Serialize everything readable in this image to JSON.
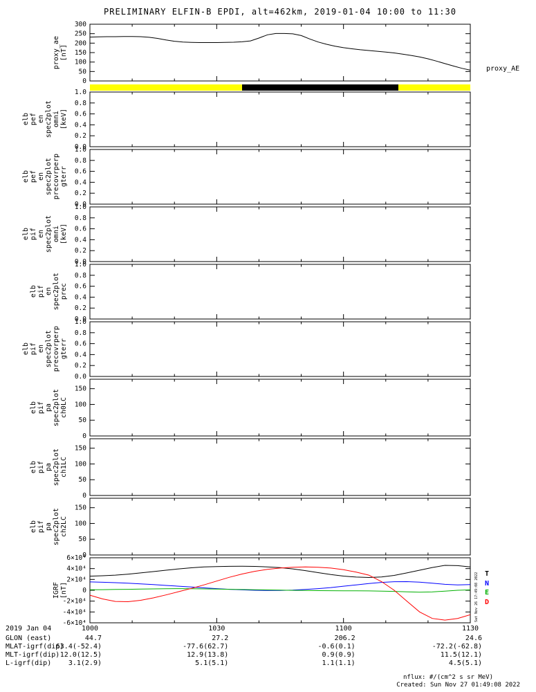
{
  "title": "PRELIMINARY ELFIN-B EPDI, alt=462km, 2019-01-04 10:00 to 11:30",
  "right_labels": {
    "proxy_ae": "proxy_AE"
  },
  "time_axis": {
    "date_label": "2019 Jan 04",
    "tick_minutes": [
      0,
      30,
      60,
      90
    ],
    "tick_labels": [
      "1000",
      "1030",
      "1100",
      "1130"
    ],
    "minor_tick_minutes": [
      10,
      20,
      40,
      50,
      70,
      80
    ]
  },
  "orbit_bar": {
    "segments": [
      {
        "color": "#ffff00",
        "t0": 0,
        "t1": 36
      },
      {
        "color": "#000000",
        "t0": 36,
        "t1": 73
      },
      {
        "color": "#ffff00",
        "t0": 73,
        "t1": 90
      }
    ]
  },
  "chart_data": [
    {
      "id": "proxy_ae",
      "type": "line",
      "ylabel_lines": [
        "proxy_ae",
        "[nT]"
      ],
      "ylim": [
        0,
        300
      ],
      "ytick_values": [
        0,
        50,
        100,
        150,
        200,
        250,
        300
      ],
      "ytick_labels": [
        "0",
        "50",
        "100",
        "150",
        "200",
        "250",
        "300"
      ],
      "x_step_minutes": 2,
      "series": [
        {
          "name": "proxy_AE",
          "color": "#000000",
          "values": [
            232,
            233,
            234,
            234,
            235,
            235,
            234,
            231,
            225,
            217,
            210,
            206,
            204,
            203,
            203,
            203,
            204,
            205,
            207,
            212,
            227,
            244,
            251,
            251,
            249,
            240,
            222,
            206,
            194,
            184,
            176,
            170,
            165,
            161,
            157,
            153,
            148,
            142,
            135,
            127,
            117,
            105,
            92,
            79,
            67,
            57
          ]
        }
      ]
    },
    {
      "id": "elb_pef_en_spec2plot_omni",
      "type": "empty",
      "ylabel_lines": [
        "elb",
        "pef",
        "en",
        "spec2plot",
        "omni",
        "[keV]"
      ],
      "ylim": [
        0,
        1
      ],
      "ytick_values": [
        0,
        0.2,
        0.4,
        0.6,
        0.8,
        1.0
      ],
      "ytick_labels": [
        "0.0",
        "0.2",
        "0.4",
        "0.6",
        "0.8",
        "1.0"
      ]
    },
    {
      "id": "elb_pef_en_spec2plot_precovrperp_gterr",
      "type": "empty",
      "ylabel_lines": [
        "elb",
        "pef",
        "en",
        "spec2plot",
        "precovrperp",
        "gterr"
      ],
      "ylim": [
        0,
        1
      ],
      "ytick_values": [
        0,
        0.2,
        0.4,
        0.6,
        0.8,
        1.0
      ],
      "ytick_labels": [
        "0.0",
        "0.2",
        "0.4",
        "0.6",
        "0.8",
        "1.0"
      ]
    },
    {
      "id": "elb_pif_en_spec2plot_omni",
      "type": "empty",
      "ylabel_lines": [
        "elb",
        "pif",
        "en",
        "spec2plot",
        "omni",
        "[keV]"
      ],
      "ylim": [
        0,
        1
      ],
      "ytick_values": [
        0,
        0.2,
        0.4,
        0.6,
        0.8,
        1.0
      ],
      "ytick_labels": [
        "0.0",
        "0.2",
        "0.4",
        "0.6",
        "0.8",
        "1.0"
      ]
    },
    {
      "id": "elb_pif_en_spec2plot_prec",
      "type": "empty",
      "ylabel_lines": [
        "elb",
        "pif",
        "en",
        "spec2plot",
        "prec"
      ],
      "ylim": [
        0,
        1
      ],
      "ytick_values": [
        0,
        0.2,
        0.4,
        0.6,
        0.8,
        1.0
      ],
      "ytick_labels": [
        "0.0",
        "0.2",
        "0.4",
        "0.6",
        "0.8",
        "1.0"
      ]
    },
    {
      "id": "elb_pif_en_spec2plot_precovrperp_gterr",
      "type": "empty",
      "ylabel_lines": [
        "elb",
        "pif",
        "en",
        "spec2plot",
        "precovrperp",
        "gterr"
      ],
      "ylim": [
        0,
        1
      ],
      "ytick_values": [
        0,
        0.2,
        0.4,
        0.6,
        0.8,
        1.0
      ],
      "ytick_labels": [
        "0.0",
        "0.2",
        "0.4",
        "0.6",
        "0.8",
        "1.0"
      ]
    },
    {
      "id": "elb_pif_pa_spec2plot_ch0LC",
      "type": "empty",
      "ylabel_lines": [
        "elb",
        "pif",
        "pa",
        "spec2plot",
        "ch0LC"
      ],
      "ylim": [
        0,
        180
      ],
      "ytick_values": [
        0,
        50,
        100,
        150
      ],
      "ytick_labels": [
        "0",
        "50",
        "100",
        "150"
      ]
    },
    {
      "id": "elb_pif_pa_spec2plot_ch1LC",
      "type": "empty",
      "ylabel_lines": [
        "elb",
        "pif",
        "pa",
        "spec2plot",
        "ch1LC"
      ],
      "ylim": [
        0,
        180
      ],
      "ytick_values": [
        0,
        50,
        100,
        150
      ],
      "ytick_labels": [
        "0",
        "50",
        "100",
        "150"
      ]
    },
    {
      "id": "elb_pif_pa_spec2plot_ch2LC",
      "type": "empty",
      "ylabel_lines": [
        "elb",
        "pif",
        "pa",
        "spec2plot",
        "ch2LC"
      ],
      "ylim": [
        0,
        180
      ],
      "ytick_values": [
        0,
        50,
        100,
        150
      ],
      "ytick_labels": [
        "0",
        "50",
        "100",
        "150"
      ]
    },
    {
      "id": "igrf",
      "type": "line",
      "ylabel_lines": [
        "IGRF",
        "[nT]"
      ],
      "ylim": [
        -60000,
        60000
      ],
      "ytick_values": [
        -60000,
        -40000,
        -20000,
        0,
        20000,
        40000,
        60000
      ],
      "ytick_labels": [
        "-6×10⁴",
        "-4×10⁴",
        "-2×10⁴",
        "0",
        "2×10⁴",
        "4×10⁴",
        "6×10⁴"
      ],
      "x_step_minutes": 3,
      "series": [
        {
          "name": "T",
          "color": "#000000",
          "values": [
            26000,
            26800,
            28000,
            29800,
            32000,
            34500,
            37000,
            39500,
            41500,
            43000,
            43800,
            44200,
            44300,
            44000,
            43200,
            41800,
            39500,
            36200,
            32500,
            29000,
            26200,
            24400,
            23600,
            24500,
            27500,
            32000,
            37000,
            42000,
            46000,
            45500,
            43000
          ]
        },
        {
          "name": "N",
          "color": "#0000ff",
          "values": [
            15500,
            14800,
            14000,
            13000,
            11800,
            10500,
            9000,
            7500,
            6000,
            4500,
            3000,
            1800,
            800,
            0,
            -400,
            -300,
            300,
            1500,
            3000,
            5000,
            7500,
            10000,
            12500,
            14500,
            15800,
            16000,
            15000,
            13000,
            11000,
            10000,
            10500
          ]
        },
        {
          "name": "E",
          "color": "#00b000",
          "values": [
            1000,
            1200,
            1500,
            1800,
            2200,
            2600,
            2900,
            3000,
            2900,
            2600,
            2200,
            1800,
            1400,
            1000,
            600,
            200,
            -100,
            -400,
            -600,
            -800,
            -900,
            -1000,
            -1200,
            -1500,
            -2000,
            -2800,
            -3500,
            -3000,
            -1500,
            0,
            800
          ]
        },
        {
          "name": "D",
          "color": "#ff0000",
          "values": [
            -9000,
            -16000,
            -20500,
            -21000,
            -18500,
            -14000,
            -8500,
            -2500,
            3500,
            10000,
            17000,
            24000,
            30000,
            35000,
            38500,
            41000,
            42500,
            43000,
            42500,
            41000,
            38000,
            33500,
            28000,
            16000,
            0,
            -20000,
            -40000,
            -52000,
            -55000,
            -52000,
            -45000
          ]
        }
      ]
    }
  ],
  "legend_igrf": [
    {
      "name": "T",
      "color": "#000000"
    },
    {
      "name": "N",
      "color": "#0000ff"
    },
    {
      "name": "E",
      "color": "#00b000"
    },
    {
      "name": "D",
      "color": "#ff0000"
    }
  ],
  "footer": {
    "rows": [
      {
        "label": "GLON (east)",
        "values": [
          "44.7",
          "27.2",
          "206.2",
          "24.6"
        ]
      },
      {
        "label": "MLAT-igrf(dip)",
        "values": [
          "63.4(-52.4)",
          "-77.6(62.7)",
          "-0.6(0.1)",
          "-72.2(-62.8)"
        ]
      },
      {
        "label": "MLT-igrf(dip)",
        "values": [
          "12.0(12.5)",
          "12.9(13.8)",
          "0.9(0.9)",
          "11.5(12.1)"
        ]
      },
      {
        "label": "L-igrf(dip)",
        "values": [
          "3.1(2.9)",
          "5.1(5.1)",
          "1.1(1.1)",
          "4.5(5.1)"
        ]
      }
    ]
  },
  "notes": {
    "nflux": "nflux: #/(cm^2 s sr MeV)",
    "created": "Created: Sun Nov 27 01:49:08 2022",
    "side_timestamp": "Sat Nov 26 17:49:08 2022"
  }
}
